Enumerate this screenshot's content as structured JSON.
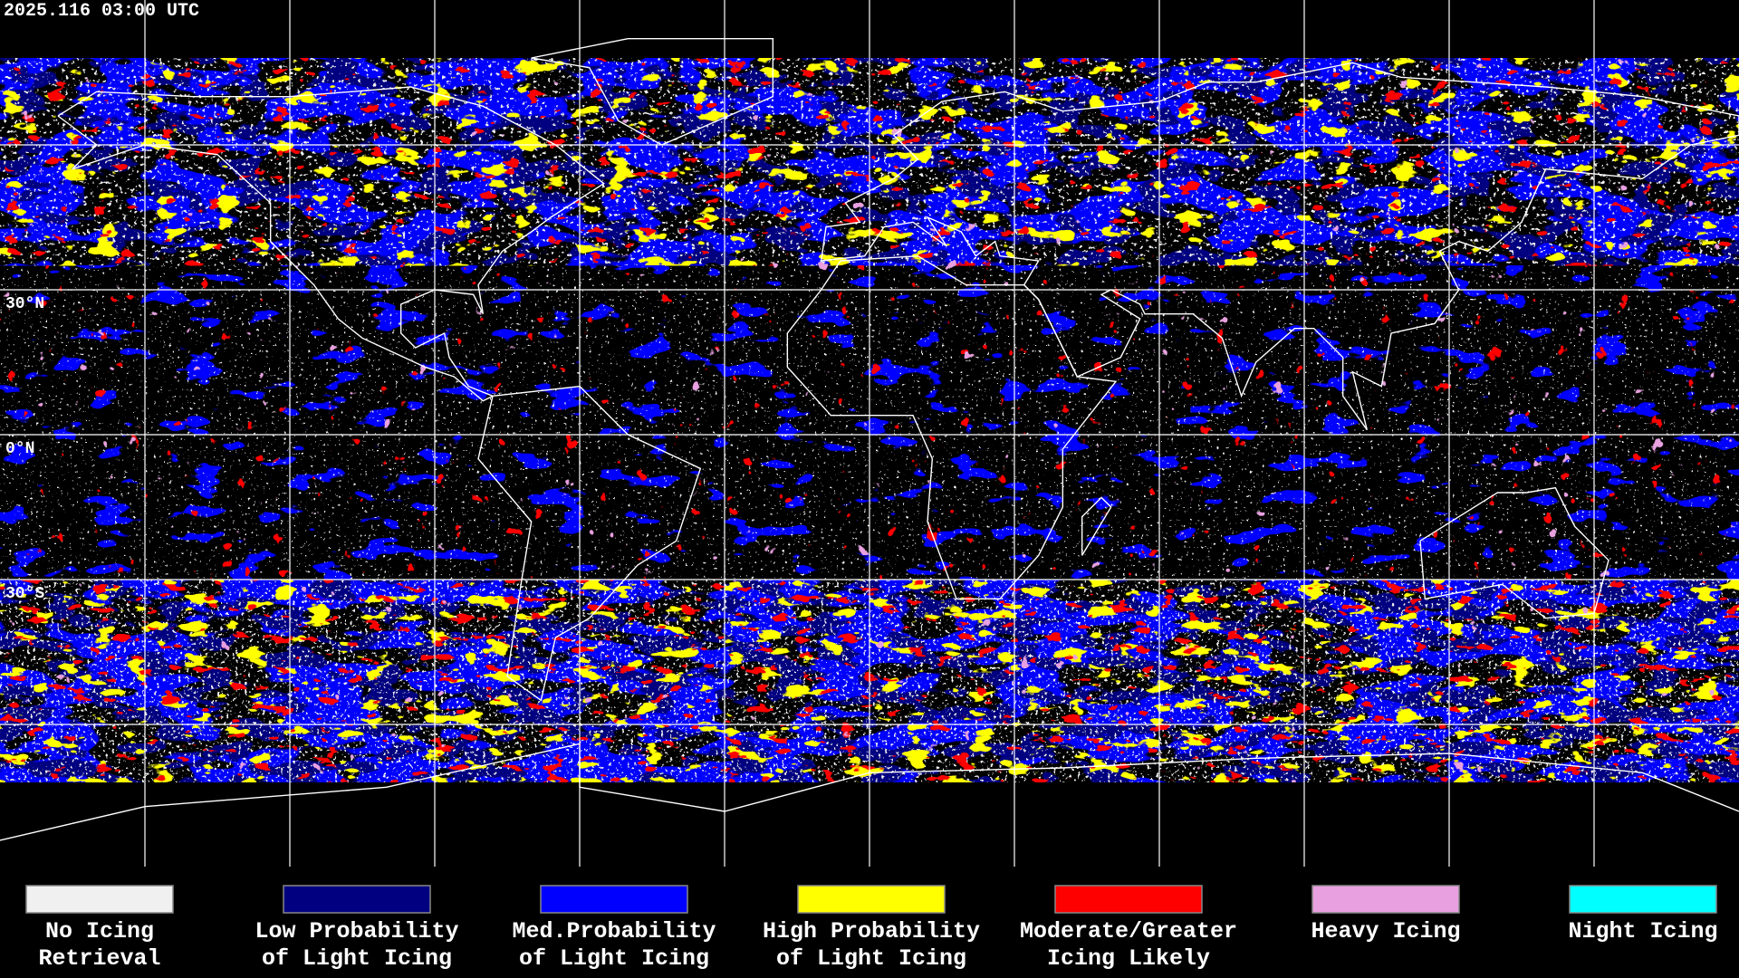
{
  "header": {
    "timestamp": "2025.116 03:00 UTC"
  },
  "map": {
    "latitude_labels": [
      "30°N",
      "0°N",
      "30°S"
    ]
  },
  "legend": [
    {
      "label_lines": [
        "No Icing",
        "Retrieval"
      ],
      "color": "#f0f0f0"
    },
    {
      "label_lines": [
        "Low Probability",
        "of Light Icing"
      ],
      "color": "#000080"
    },
    {
      "label_lines": [
        "Med.Probability",
        "of Light Icing"
      ],
      "color": "#0000ff"
    },
    {
      "label_lines": [
        "High Probability",
        "of Light Icing"
      ],
      "color": "#ffff00"
    },
    {
      "label_lines": [
        "Moderate/Greater",
        "Icing Likely"
      ],
      "color": "#ff0000"
    },
    {
      "label_lines": [
        "Heavy Icing",
        ""
      ],
      "color": "#e8a0e0"
    },
    {
      "label_lines": [
        "Night Icing",
        ""
      ],
      "color": "#00ffff"
    }
  ]
}
